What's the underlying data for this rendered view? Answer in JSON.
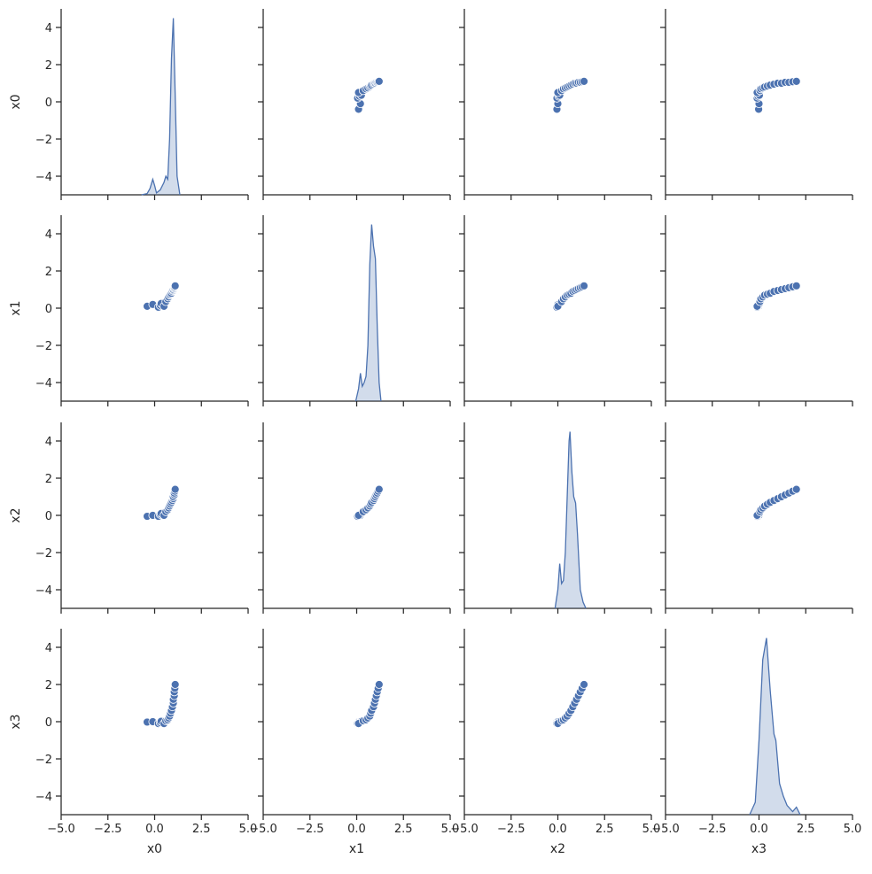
{
  "chart_data": {
    "type": "pairplot",
    "color": "#4c72b0",
    "xlim": [
      -5,
      5
    ],
    "ylim": [
      -5,
      5
    ],
    "xticks": [
      {
        "value": -5,
        "label": "−5.0"
      },
      {
        "value": -2.5,
        "label": "−2.5"
      },
      {
        "value": 0,
        "label": "0.0"
      },
      {
        "value": 2.5,
        "label": "2.5"
      },
      {
        "value": 5,
        "label": "5.0"
      }
    ],
    "yticks": [
      {
        "value": -4,
        "label": "−4"
      },
      {
        "value": -2,
        "label": "−2"
      },
      0,
      2,
      4
    ],
    "diag_ylim": [
      0,
      3
    ],
    "columns": [
      {
        "name": "x0",
        "values": [
          -0.4,
          -0.1,
          0.2,
          0.3,
          0.35,
          0.5,
          0.6,
          0.7,
          0.75,
          0.8,
          0.85,
          0.9,
          0.95,
          1.0,
          1.0,
          1.05,
          1.05,
          1.08,
          1.1
        ]
      },
      {
        "name": "x1",
        "values": [
          0.1,
          0.2,
          0.05,
          0.15,
          0.25,
          0.1,
          0.35,
          0.5,
          0.6,
          0.7,
          0.75,
          0.8,
          0.9,
          0.95,
          1.0,
          1.05,
          1.1,
          1.15,
          1.2
        ]
      },
      {
        "name": "x2",
        "values": [
          -0.05,
          0.0,
          -0.05,
          0.05,
          0.1,
          0.0,
          0.2,
          0.3,
          0.4,
          0.5,
          0.6,
          0.7,
          0.8,
          0.9,
          1.0,
          1.1,
          1.2,
          1.3,
          1.4
        ]
      },
      {
        "name": "x3",
        "values": [
          -0.02,
          0.0,
          -0.1,
          -0.05,
          0.02,
          -0.1,
          0.05,
          0.1,
          0.2,
          0.3,
          0.45,
          0.6,
          0.8,
          1.0,
          1.2,
          1.4,
          1.6,
          1.8,
          2.0
        ]
      }
    ],
    "diag": [
      {
        "x": [
          -0.7,
          -0.4,
          -0.25,
          -0.1,
          0.0,
          0.1,
          0.3,
          0.5,
          0.6,
          0.7,
          0.8,
          0.9,
          1.0,
          1.1,
          1.2,
          1.35
        ],
        "density": [
          0,
          0.02,
          0.1,
          0.25,
          0.15,
          0.03,
          0.08,
          0.2,
          0.3,
          0.25,
          0.9,
          2.2,
          2.85,
          1.6,
          0.3,
          0
        ]
      },
      {
        "x": [
          -0.05,
          0.1,
          0.2,
          0.3,
          0.4,
          0.5,
          0.6,
          0.7,
          0.8,
          0.9,
          1.0,
          1.1,
          1.2,
          1.3
        ],
        "density": [
          0,
          0.2,
          0.45,
          0.24,
          0.3,
          0.4,
          0.9,
          2.2,
          2.85,
          2.5,
          2.3,
          1.2,
          0.3,
          0
        ]
      },
      {
        "x": [
          -0.15,
          0,
          0.1,
          0.2,
          0.3,
          0.4,
          0.5,
          0.6,
          0.65,
          0.75,
          0.85,
          0.95,
          1.05,
          1.2,
          1.35,
          1.5
        ],
        "density": [
          0,
          0.3,
          0.72,
          0.4,
          0.45,
          0.9,
          1.8,
          2.7,
          2.85,
          2.2,
          1.8,
          1.7,
          1.2,
          0.3,
          0.1,
          0
        ]
      },
      {
        "x": [
          -0.5,
          -0.2,
          0,
          0.2,
          0.4,
          0.6,
          0.8,
          0.9,
          1.1,
          1.3,
          1.5,
          1.8,
          2.0,
          2.2
        ],
        "density": [
          0,
          0.2,
          1.2,
          2.5,
          2.85,
          2.0,
          1.3,
          1.2,
          0.5,
          0.3,
          0.15,
          0.05,
          0.12,
          0
        ]
      }
    ]
  }
}
